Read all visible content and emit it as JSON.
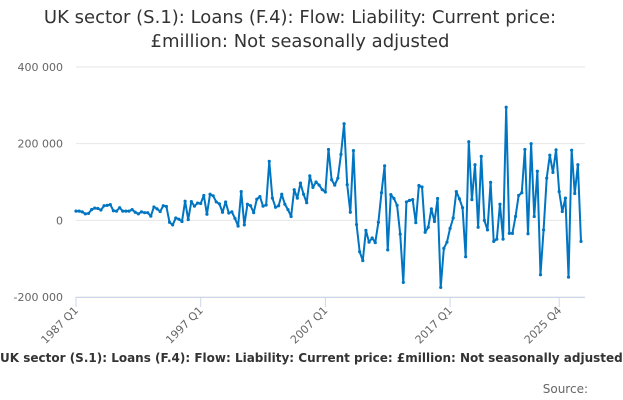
{
  "chart_data": {
    "type": "line",
    "title": "UK sector (S.1): Loans (F.4): Flow: Liability: Current price: £million: Not seasonally adjusted",
    "xlabel": "",
    "ylabel": "",
    "ylim": [
      -200000,
      400000
    ],
    "y_ticks": [
      -200000,
      0,
      200000,
      400000
    ],
    "y_tick_labels": [
      "-200 000",
      "0",
      "200 000",
      "400 000"
    ],
    "x_tick_labels": [
      "1987 Q1",
      "1997 Q1",
      "2007 Q1",
      "2017 Q1",
      "2025 Q4"
    ],
    "x_tick_indices": [
      0,
      40,
      80,
      120,
      155
    ],
    "grid": "horizontal",
    "legend": "bottom",
    "line_color": "#0075c2",
    "series": [
      {
        "name": "UK sector (S.1): Loans (F.4): Flow: Liability: Current price: £million: Not seasonally adjusted",
        "values": [
          24000,
          24000,
          22000,
          17000,
          18000,
          28000,
          32000,
          31000,
          27000,
          38000,
          39000,
          41000,
          25000,
          24000,
          33000,
          24000,
          24000,
          24000,
          28000,
          21000,
          17000,
          22000,
          20000,
          20000,
          11000,
          35000,
          30000,
          23000,
          38000,
          36000,
          -5000,
          -12000,
          6000,
          3000,
          -3000,
          50000,
          2000,
          49000,
          37000,
          45000,
          44000,
          65000,
          16000,
          68000,
          64000,
          48000,
          43000,
          21000,
          48000,
          19000,
          22000,
          5000,
          -15000,
          75000,
          -12000,
          42000,
          38000,
          20000,
          55000,
          62000,
          37000,
          40000,
          154000,
          58000,
          34000,
          38000,
          68000,
          42000,
          28000,
          10000,
          80000,
          58000,
          97000,
          68000,
          46000,
          116000,
          86000,
          100000,
          92000,
          80000,
          74000,
          185000,
          106000,
          92000,
          110000,
          172000,
          252000,
          93000,
          21000,
          182000,
          -11000,
          -82000,
          -105000,
          -26000,
          -57000,
          -46000,
          -58000,
          -5000,
          72000,
          142000,
          -77000,
          67000,
          57000,
          39000,
          -36000,
          -162000,
          48000,
          52000,
          54000,
          -6000,
          91000,
          87000,
          -31000,
          -18000,
          30000,
          -3000,
          57000,
          -175000,
          -73000,
          -57000,
          -21000,
          6000,
          75000,
          56000,
          33000,
          -95000,
          205000,
          54000,
          145000,
          -18000,
          167000,
          0,
          -25000,
          99000,
          -55000,
          -49000,
          42000,
          -49000,
          295000,
          -34000,
          -34000,
          10000,
          65000,
          72000,
          185000,
          -35000,
          200000,
          10000,
          128000,
          -142000,
          -25000,
          110000,
          170000,
          125000,
          184000,
          75000,
          23000,
          58000,
          -148000,
          183000,
          70000,
          145000,
          -55000
        ]
      }
    ]
  },
  "footer": {
    "legend_text": "UK sector (S.1): Loans (F.4): Flow: Liability: Current price: £million: Not seasonally adjusted",
    "source_label": "Source:"
  }
}
